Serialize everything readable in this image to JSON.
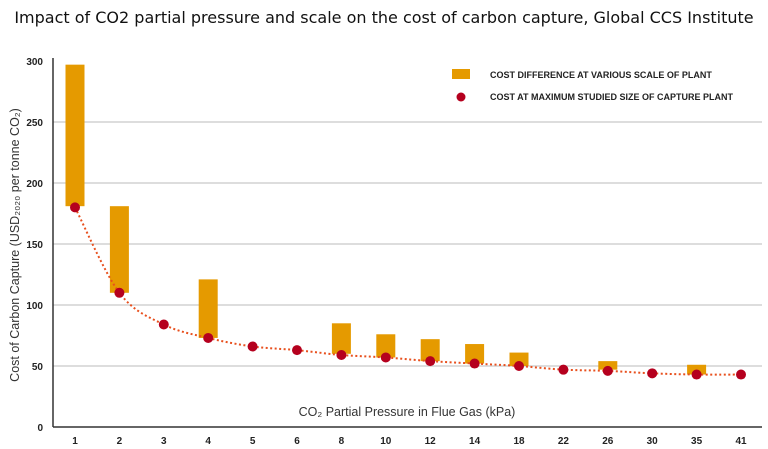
{
  "title": "Impact of CO2 partial pressure and scale on the cost of carbon capture, Global CCS Institute",
  "chart_data": {
    "type": "bar",
    "title": "Impact of CO2 partial pressure and scale on the cost of carbon capture, Global CCS Institute",
    "xlabel": "CO₂ Partial Pressure in Flue Gas (kPa)",
    "ylabel": "Cost of Carbon Capture (USD₂₀₂₀ per tonne CO₂)",
    "ylim": [
      0,
      300
    ],
    "yticks": [
      0,
      50,
      100,
      150,
      200,
      250,
      300
    ],
    "grid": true,
    "legend_position": "top-right",
    "categories": [
      "1",
      "2",
      "3",
      "4",
      "5",
      "6",
      "8",
      "10",
      "12",
      "14",
      "18",
      "22",
      "26",
      "30",
      "35",
      "41"
    ],
    "series": [
      {
        "name": "COST DIFFERENCE AT VARIOUS SCALE OF PLANT",
        "kind": "range-bar",
        "color": "#e59a00",
        "low": [
          181,
          110,
          null,
          73,
          null,
          null,
          60,
          57,
          54,
          52,
          50,
          null,
          47,
          null,
          43,
          null
        ],
        "high": [
          297,
          181,
          null,
          121,
          null,
          null,
          85,
          76,
          72,
          68,
          61,
          null,
          54,
          null,
          51,
          null
        ]
      },
      {
        "name": "COST AT MAXIMUM STUDIED SIZE OF CAPTURE PLANT",
        "kind": "scatter",
        "color": "#b5001e",
        "values": [
          180,
          110,
          84,
          73,
          66,
          63,
          59,
          57,
          54,
          52,
          50,
          47,
          46,
          44,
          43,
          43
        ]
      }
    ],
    "trendline": {
      "style": "dotted",
      "color": "#e8501e"
    }
  }
}
